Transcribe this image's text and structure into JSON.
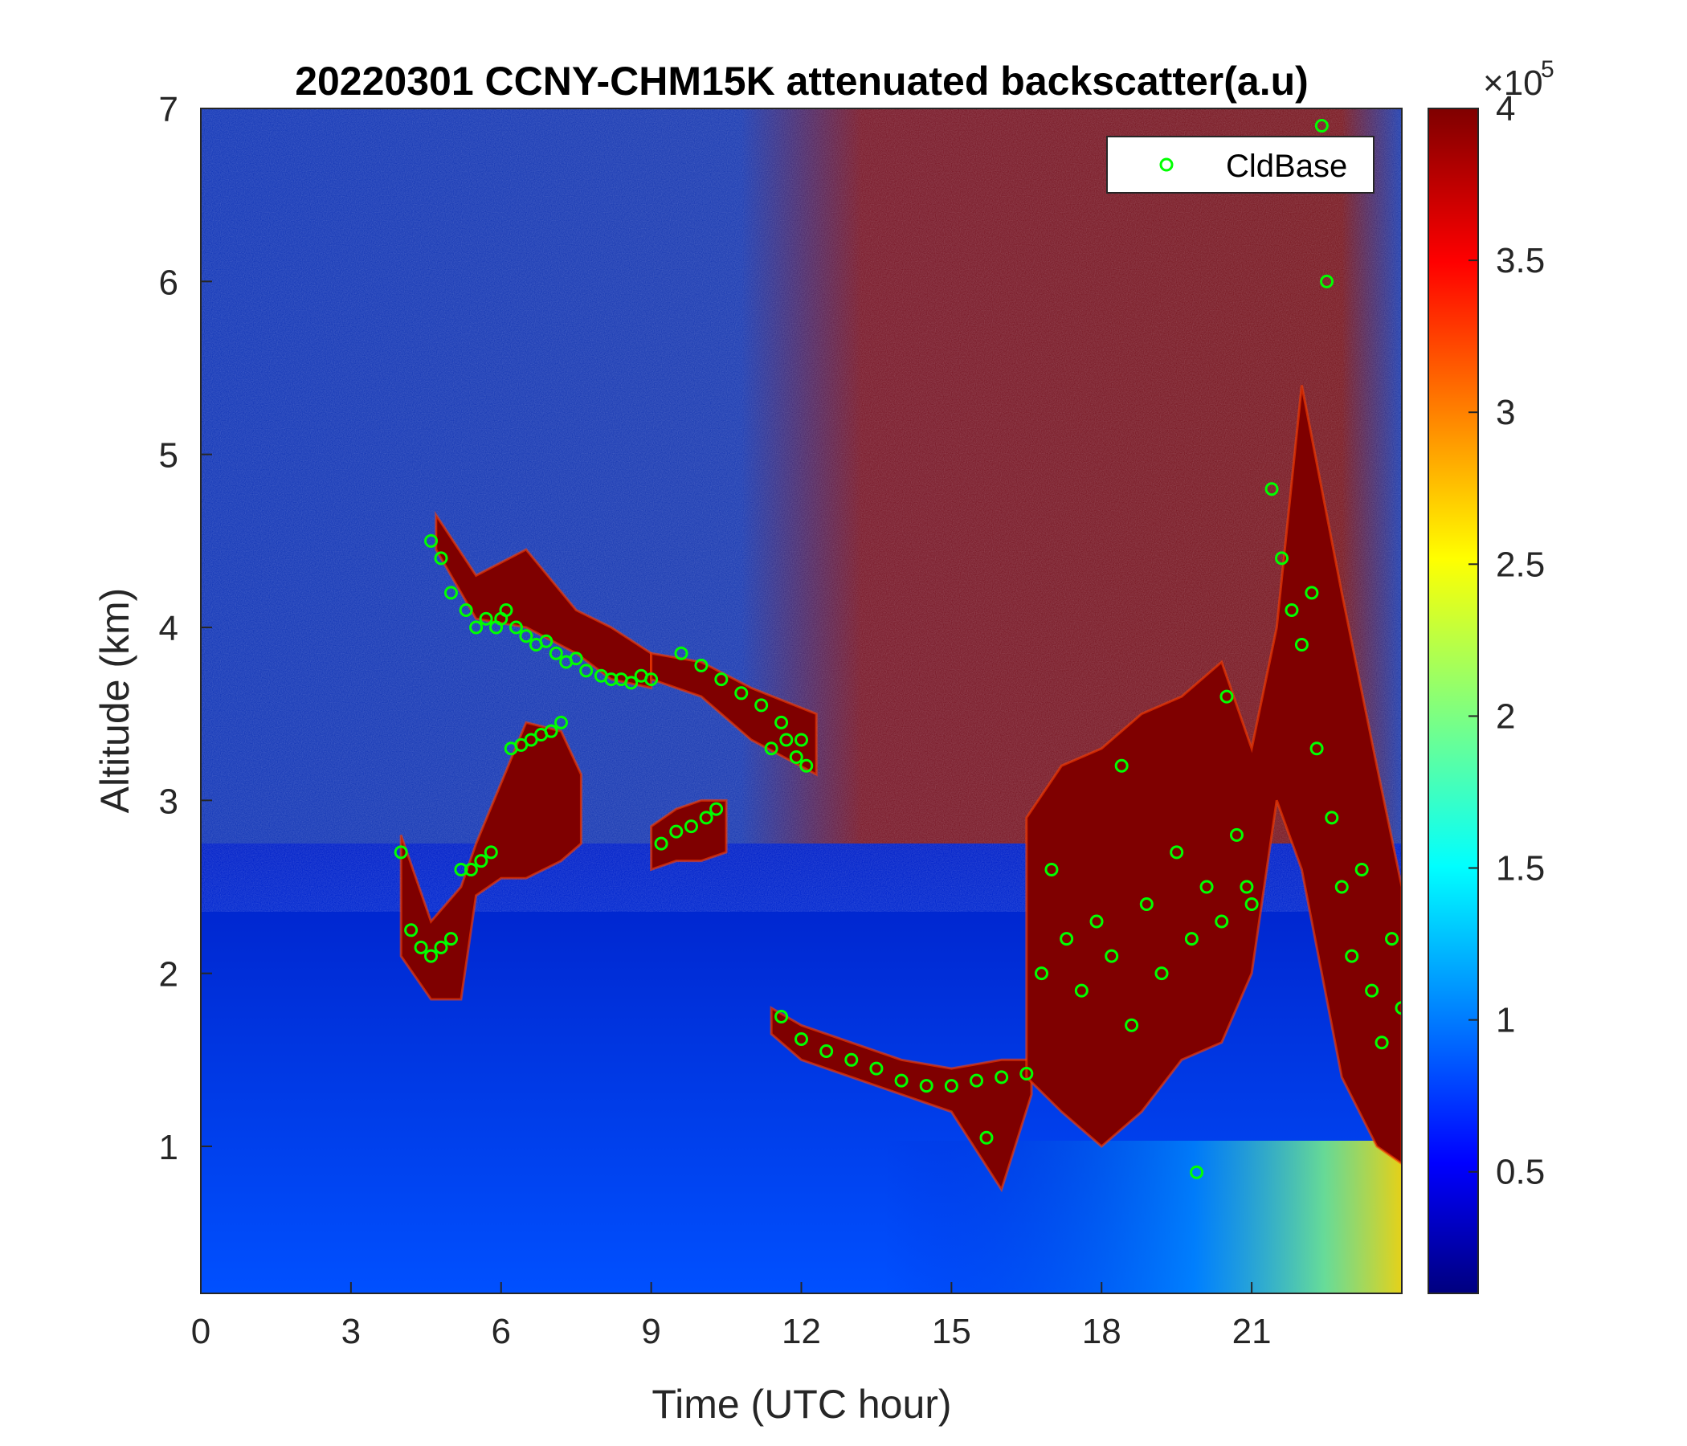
{
  "chart_data": {
    "type": "heatmap",
    "title": "20220301 CCNY-CHM15K attenuated backscatter(a.u)",
    "xlabel": "Time (UTC hour)",
    "ylabel": "Altitude (km)",
    "xlim": [
      0,
      24
    ],
    "ylim": [
      0.15,
      7
    ],
    "xticks": [
      0,
      3,
      6,
      9,
      12,
      15,
      18,
      21
    ],
    "xtick_labels": [
      "0",
      "3",
      "6",
      "9",
      "12",
      "15",
      "18",
      "21"
    ],
    "yticks": [
      1,
      2,
      3,
      4,
      5,
      6,
      7
    ],
    "ytick_labels": [
      "1",
      "2",
      "3",
      "4",
      "5",
      "6",
      "7"
    ],
    "colorbar": {
      "range": [
        10000,
        400000
      ],
      "ticks": [
        0.5,
        1,
        1.5,
        2,
        2.5,
        3,
        3.5,
        4
      ],
      "tick_labels": [
        "0.5",
        "1",
        "1.5",
        "2",
        "2.5",
        "3",
        "3.5",
        "4"
      ],
      "exponent_label": "×10",
      "exponent": "5",
      "colormap": "jet"
    },
    "legend": {
      "placement": "top-right",
      "entries": [
        {
          "name": "CldBase",
          "marker": "circle",
          "color": "#00ff00"
        }
      ]
    },
    "grid": false,
    "cloud_layers": [
      {
        "x": [
          4.7,
          5.5,
          6.5,
          7.5,
          8.2,
          9.0
        ],
        "top": [
          4.65,
          4.3,
          4.45,
          4.1,
          4.0,
          3.85
        ],
        "base": [
          4.45,
          4.05,
          4.0,
          3.85,
          3.7,
          3.65
        ]
      },
      {
        "x": [
          9.0,
          10.0,
          11.0,
          12.3
        ],
        "top": [
          3.85,
          3.8,
          3.65,
          3.5
        ],
        "base": [
          3.7,
          3.6,
          3.35,
          3.15
        ]
      },
      {
        "x": [
          4.0,
          4.6,
          5.2,
          5.5,
          6.0,
          6.5,
          7.2,
          7.6
        ],
        "top": [
          2.8,
          2.3,
          2.5,
          2.75,
          3.1,
          3.45,
          3.4,
          3.15
        ],
        "base": [
          2.1,
          1.85,
          1.85,
          2.45,
          2.55,
          2.55,
          2.65,
          2.75
        ]
      },
      {
        "x": [
          9.0,
          9.5,
          10.0,
          10.5
        ],
        "top": [
          2.85,
          2.95,
          3.0,
          3.0
        ],
        "base": [
          2.6,
          2.65,
          2.65,
          2.7
        ]
      },
      {
        "x": [
          11.4,
          12.0,
          13.0,
          14.0,
          15.0,
          16.0,
          16.6
        ],
        "top": [
          1.8,
          1.7,
          1.6,
          1.5,
          1.45,
          1.5,
          1.5
        ],
        "base": [
          1.65,
          1.5,
          1.4,
          1.3,
          1.2,
          0.75,
          1.3
        ]
      },
      {
        "x": [
          16.5,
          17.2,
          18.0,
          18.8,
          19.6,
          20.4,
          21.0,
          21.5,
          22.0,
          22.8,
          23.5,
          24.0
        ],
        "top": [
          2.9,
          3.2,
          3.3,
          3.5,
          3.6,
          3.8,
          3.3,
          4.0,
          5.4,
          4.2,
          3.2,
          2.5
        ],
        "base": [
          1.4,
          1.2,
          1.0,
          1.2,
          1.5,
          1.6,
          2.0,
          3.0,
          2.6,
          1.4,
          1.0,
          0.9
        ]
      }
    ],
    "cldbase_series": {
      "name": "CldBase",
      "x": [
        4.0,
        4.2,
        4.4,
        4.6,
        4.8,
        5.0,
        5.2,
        4.6,
        4.8,
        5.0,
        5.3,
        5.5,
        5.7,
        5.9,
        6.0,
        6.1,
        6.3,
        6.5,
        6.7,
        6.9,
        7.1,
        7.3,
        7.5,
        7.7,
        8.0,
        8.2,
        8.4,
        8.6,
        8.8,
        9.0,
        6.2,
        6.4,
        6.6,
        6.8,
        7.0,
        7.2,
        5.4,
        5.6,
        5.8,
        9.2,
        9.5,
        9.8,
        10.1,
        10.3,
        9.6,
        10.0,
        10.4,
        10.8,
        11.2,
        11.6,
        12.0,
        11.4,
        11.7,
        11.9,
        12.1,
        11.6,
        12.0,
        12.5,
        13.0,
        13.5,
        14.0,
        14.5,
        15.0,
        15.5,
        16.0,
        16.5,
        15.7,
        16.8,
        17.0,
        17.3,
        17.6,
        17.9,
        18.2,
        18.4,
        18.6,
        18.9,
        19.2,
        19.5,
        19.8,
        20.1,
        20.4,
        20.7,
        21.0,
        19.9,
        20.5,
        20.9,
        21.4,
        21.6,
        21.8,
        22.0,
        22.2,
        22.3,
        22.6,
        22.8,
        23.0,
        23.2,
        23.4,
        23.6,
        23.8,
        24.0,
        22.5,
        22.4
      ],
      "y": [
        2.7,
        2.25,
        2.15,
        2.1,
        2.15,
        2.2,
        2.6,
        4.5,
        4.4,
        4.2,
        4.1,
        4.0,
        4.05,
        4.0,
        4.05,
        4.1,
        4.0,
        3.95,
        3.9,
        3.92,
        3.85,
        3.8,
        3.82,
        3.75,
        3.72,
        3.7,
        3.7,
        3.68,
        3.72,
        3.7,
        3.3,
        3.32,
        3.35,
        3.38,
        3.4,
        3.45,
        2.6,
        2.65,
        2.7,
        2.75,
        2.82,
        2.85,
        2.9,
        2.95,
        3.85,
        3.78,
        3.7,
        3.62,
        3.55,
        3.45,
        3.35,
        3.3,
        3.35,
        3.25,
        3.2,
        1.75,
        1.62,
        1.55,
        1.5,
        1.45,
        1.38,
        1.35,
        1.35,
        1.38,
        1.4,
        1.42,
        1.05,
        2.0,
        2.6,
        2.2,
        1.9,
        2.3,
        2.1,
        3.2,
        1.7,
        2.4,
        2.0,
        2.7,
        2.2,
        2.5,
        2.3,
        2.8,
        2.4,
        0.85,
        3.6,
        2.5,
        4.8,
        4.4,
        4.1,
        3.9,
        4.2,
        3.3,
        2.9,
        2.5,
        2.1,
        2.6,
        1.9,
        1.6,
        2.2,
        1.8,
        6.0,
        6.9
      ]
    }
  }
}
